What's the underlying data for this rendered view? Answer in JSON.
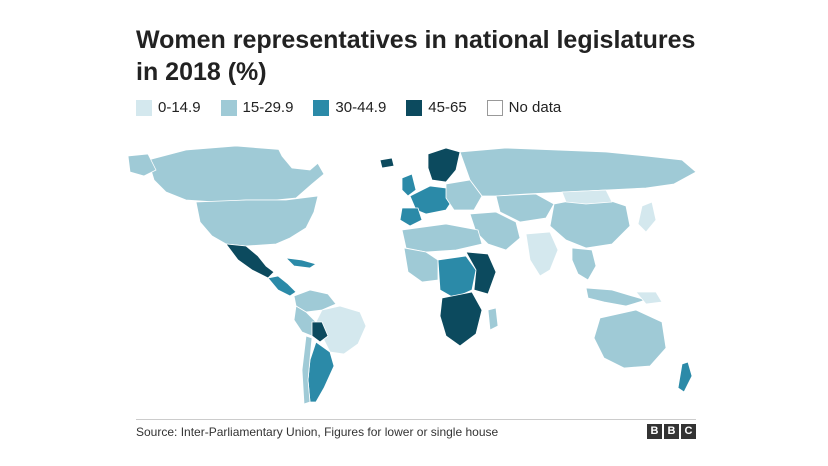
{
  "title": "Women representatives in national legislatures in 2018 (%)",
  "legend": [
    {
      "label": "0-14.9",
      "color": "#d4e8ee"
    },
    {
      "label": "15-29.9",
      "color": "#9fcad6"
    },
    {
      "label": "30-44.9",
      "color": "#2b8aa8"
    },
    {
      "label": "45-65",
      "color": "#0c4a5e"
    },
    {
      "label": "No data",
      "color": "#ffffff"
    }
  ],
  "source": "Source: Inter-Parliamentary Union, Figures for lower or single house",
  "logo": {
    "letters": [
      "B",
      "B",
      "C"
    ]
  }
}
